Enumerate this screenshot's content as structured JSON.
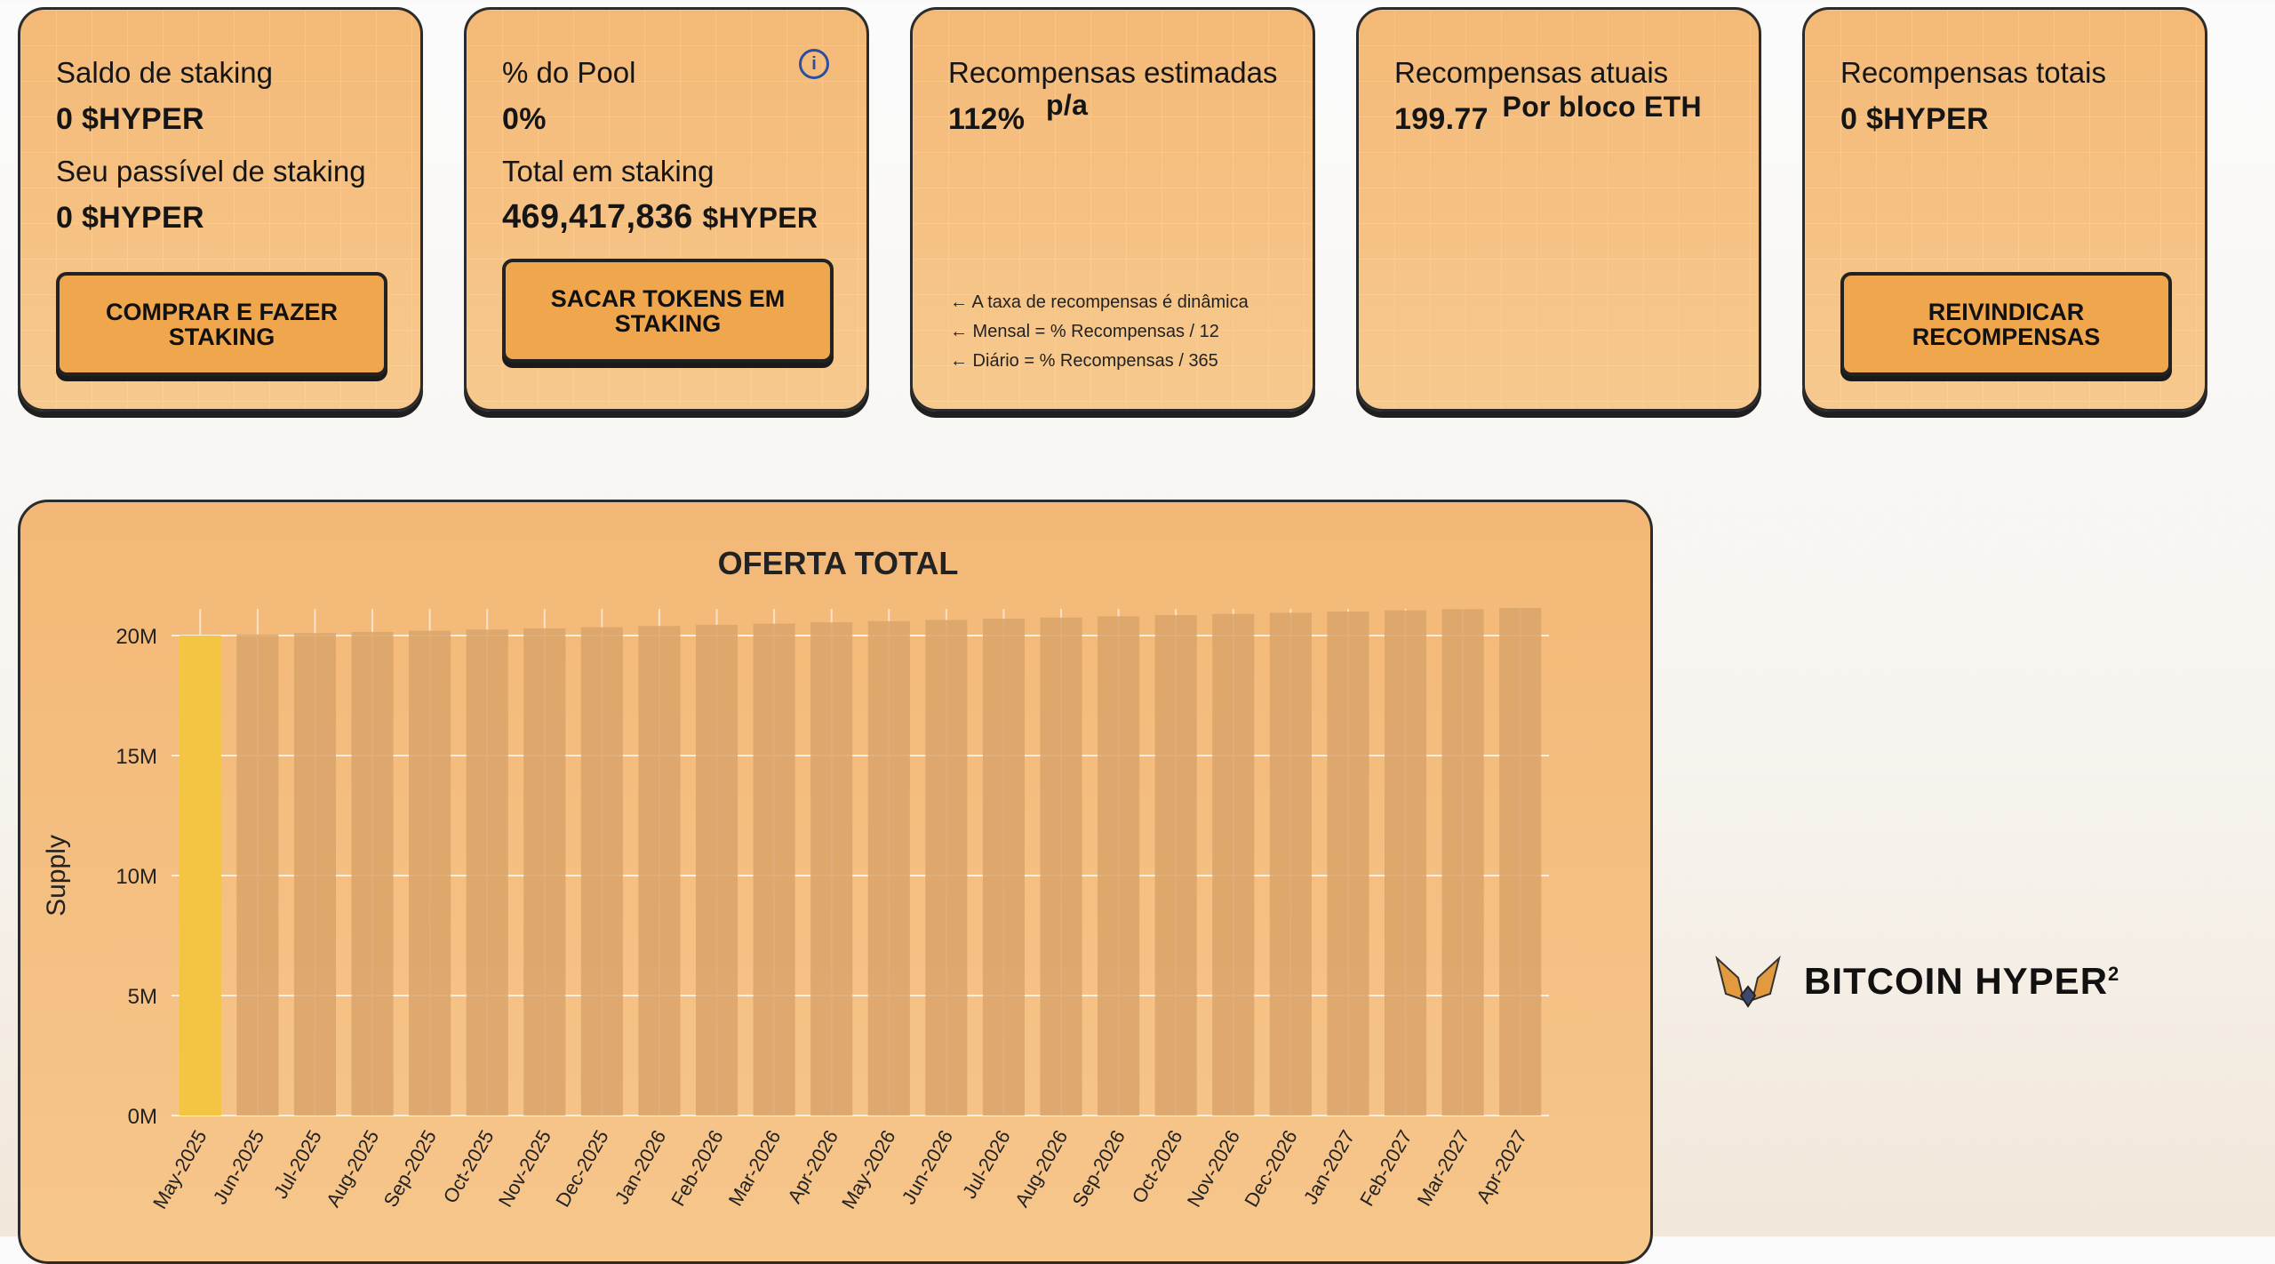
{
  "cards": {
    "balance": {
      "label": "Saldo de staking",
      "value": "0 $HYPER",
      "label2": "Seu passível de staking",
      "value2": "0 $HYPER",
      "button": "COMPRAR E FAZER STAKING"
    },
    "pool": {
      "label": "% do Pool",
      "value": "0%",
      "label2": "Total em staking",
      "value2_num": "469,417,836",
      "value2_unit": "$HYPER",
      "button": "SACAR TOKENS EM STAKING",
      "info_icon": "info-icon"
    },
    "estimated": {
      "label": "Recompensas estimadas",
      "value": "112%",
      "suffix": "p/a",
      "notes": [
        "← A taxa de recompensas é dinâmica",
        "← Mensal = % Recompensas / 12",
        "← Diário = % Recompensas / 365"
      ]
    },
    "current": {
      "label": "Recompensas atuais",
      "value": "199.77",
      "suffix": "Por bloco ETH"
    },
    "total": {
      "label": "Recompensas totais",
      "value": "0 $HYPER",
      "button": "REIVINDICAR RECOMPENSAS"
    }
  },
  "chart_data": {
    "type": "bar",
    "title": "OFERTA TOTAL",
    "ylabel": "Supply",
    "xlabel": "",
    "ylim": [
      0,
      20000000
    ],
    "yticks": [
      "0M",
      "5M",
      "10M",
      "15M",
      "20M"
    ],
    "categories": [
      "May-2025",
      "Jun-2025",
      "Jul-2025",
      "Aug-2025",
      "Sep-2025",
      "Oct-2025",
      "Nov-2025",
      "Dec-2025",
      "Jan-2026",
      "Feb-2026",
      "Mar-2026",
      "Apr-2026",
      "May-2026",
      "Jun-2026",
      "Jul-2026",
      "Aug-2026",
      "Sep-2026",
      "Oct-2026",
      "Nov-2026",
      "Dec-2026",
      "Jan-2027",
      "Feb-2027",
      "Mar-2027",
      "Apr-2027"
    ],
    "values": [
      20000000,
      20050000,
      20100000,
      20150000,
      20200000,
      20250000,
      20300000,
      20350000,
      20400000,
      20450000,
      20500000,
      20550000,
      20600000,
      20650000,
      20700000,
      20750000,
      20800000,
      20850000,
      20900000,
      20950000,
      21000000,
      21050000,
      21100000,
      21150000
    ],
    "grid": true,
    "highlight_color": "#f4c542",
    "bar_color": "#d9a36a"
  },
  "brand": {
    "name": "BITCOIN HYPER",
    "superscript": "2"
  }
}
